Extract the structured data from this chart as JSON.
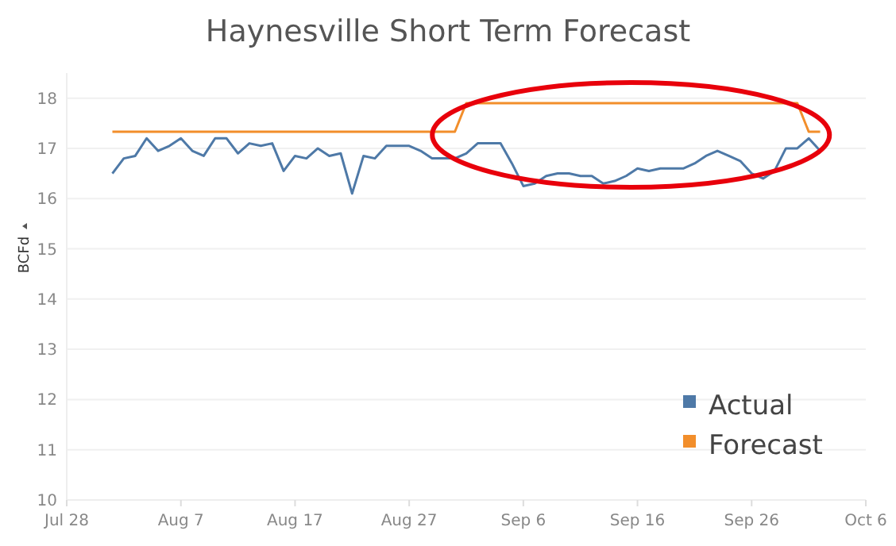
{
  "chart_data": {
    "type": "line",
    "title": "Haynesville Short Term Forecast",
    "ylabel": "BCFd",
    "xlim": [
      "--07-28",
      "--10-06"
    ],
    "xticks": [
      {
        "value": "--07-28",
        "label": "Jul 28"
      },
      {
        "value": "--08-07",
        "label": "Aug 7"
      },
      {
        "value": "--08-17",
        "label": "Aug 17"
      },
      {
        "value": "--08-27",
        "label": "Aug 27"
      },
      {
        "value": "--09-06",
        "label": "Sep 6"
      },
      {
        "value": "--09-16",
        "label": "Sep 16"
      },
      {
        "value": "--09-26",
        "label": "Sep 26"
      },
      {
        "value": "--10-06",
        "label": "Oct 6"
      }
    ],
    "ylim": [
      10,
      18.5
    ],
    "yticks": [
      10,
      11,
      12,
      13,
      14,
      15,
      16,
      17,
      18
    ],
    "grid": "y",
    "legend": "bottom right",
    "marker": "none",
    "line_style": "solid",
    "series": [
      {
        "name": "Actual",
        "color": "#4e79a7",
        "x": [
          "--08-01",
          "--08-02",
          "--08-03",
          "--08-04",
          "--08-05",
          "--08-06",
          "--08-07",
          "--08-08",
          "--08-09",
          "--08-10",
          "--08-11",
          "--08-12",
          "--08-13",
          "--08-14",
          "--08-15",
          "--08-16",
          "--08-17",
          "--08-18",
          "--08-19",
          "--08-20",
          "--08-21",
          "--08-22",
          "--08-23",
          "--08-24",
          "--08-25",
          "--08-26",
          "--08-27",
          "--08-28",
          "--08-29",
          "--08-30",
          "--08-31",
          "--09-01",
          "--09-02",
          "--09-03",
          "--09-04",
          "--09-05",
          "--09-06",
          "--09-07",
          "--09-08",
          "--09-09",
          "--09-10",
          "--09-11",
          "--09-12",
          "--09-13",
          "--09-14",
          "--09-15",
          "--09-16",
          "--09-17",
          "--09-18",
          "--09-19",
          "--09-20",
          "--09-21",
          "--09-22",
          "--09-23",
          "--09-24",
          "--09-25",
          "--09-26",
          "--09-27",
          "--09-28",
          "--09-29",
          "--09-30",
          "--10-01",
          "--10-02"
        ],
        "values": [
          16.5,
          16.8,
          16.85,
          17.2,
          16.95,
          17.05,
          17.2,
          16.95,
          16.85,
          17.2,
          17.2,
          16.9,
          17.1,
          17.05,
          17.1,
          16.55,
          16.85,
          16.8,
          17.0,
          16.85,
          16.9,
          16.1,
          16.85,
          16.8,
          17.05,
          17.05,
          17.05,
          16.95,
          16.8,
          16.8,
          16.8,
          16.9,
          17.1,
          17.1,
          17.1,
          16.7,
          16.25,
          16.3,
          16.45,
          16.5,
          16.5,
          16.45,
          16.45,
          16.3,
          16.35,
          16.45,
          16.6,
          16.55,
          16.6,
          16.6,
          16.6,
          16.7,
          16.85,
          16.95,
          16.85,
          16.75,
          16.5,
          16.4,
          16.55,
          17.0,
          17.0,
          17.2,
          16.95
        ]
      },
      {
        "name": "Forecast",
        "color": "#f28e2b",
        "x": [
          "--08-01",
          "--08-31",
          "--09-01",
          "--09-30",
          "--10-01",
          "--10-02"
        ],
        "values": [
          17.33,
          17.33,
          17.9,
          17.9,
          17.33,
          17.33
        ]
      }
    ]
  }
}
